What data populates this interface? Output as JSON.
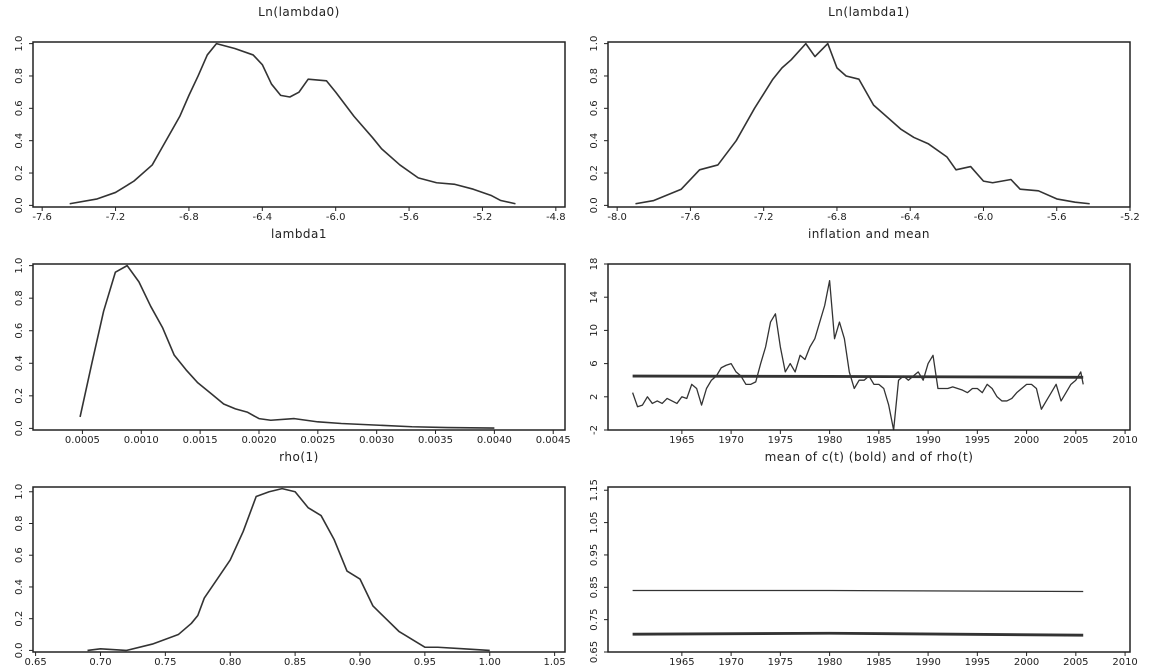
{
  "chart_data": [
    {
      "type": "line",
      "title": "Ln(lambda0)",
      "xlim": [
        -7.65,
        -4.75
      ],
      "ylim": [
        -0.01,
        1.01
      ],
      "xticks": [
        -7.6,
        -7.2,
        -6.8,
        -6.4,
        {
          "value": -6,
          "label": "-6.0"
        },
        -5.6,
        -5.2,
        -4.8
      ],
      "yticks": [
        {
          "value": 0,
          "label": "0.0"
        },
        0.2,
        0.4,
        0.6,
        0.8,
        {
          "value": 1,
          "label": "1.0"
        }
      ],
      "series": [
        {
          "color": "#333333",
          "linewidth": 1.6,
          "x": [
            -7.45,
            -7.3,
            -7.2,
            -7.1,
            -7.0,
            -6.95,
            -6.85,
            -6.8,
            -6.75,
            -6.7,
            -6.65,
            -6.55,
            -6.45,
            -6.4,
            -6.35,
            -6.3,
            -6.25,
            -6.2,
            -6.15,
            -6.05,
            -6.0,
            -5.9,
            -5.8,
            -5.75,
            -5.65,
            -5.55,
            -5.45,
            -5.35,
            -5.25,
            -5.15,
            -5.1,
            -5.02
          ],
          "values": [
            0.01,
            0.04,
            0.08,
            0.15,
            0.25,
            0.35,
            0.55,
            0.68,
            0.8,
            0.93,
            1.0,
            0.97,
            0.93,
            0.87,
            0.75,
            0.68,
            0.67,
            0.7,
            0.78,
            0.77,
            0.7,
            0.55,
            0.42,
            0.35,
            0.25,
            0.17,
            0.14,
            0.13,
            0.1,
            0.06,
            0.03,
            0.01
          ]
        }
      ]
    },
    {
      "type": "line",
      "title": "Ln(lambda1)",
      "xlim": [
        -8.05,
        -5.2
      ],
      "ylim": [
        -0.01,
        1.01
      ],
      "xticks": [
        {
          "value": -8,
          "label": "-8.0"
        },
        -7.6,
        -7.2,
        -6.8,
        -6.4,
        {
          "value": -6,
          "label": "-6.0"
        },
        -5.6,
        -5.2
      ],
      "yticks": [
        {
          "value": 0,
          "label": "0.0"
        },
        0.2,
        0.4,
        0.6,
        0.8,
        {
          "value": 1,
          "label": "1.0"
        }
      ],
      "series": [
        {
          "color": "#333333",
          "linewidth": 1.6,
          "x": [
            -7.9,
            -7.8,
            -7.65,
            -7.55,
            -7.45,
            -7.35,
            -7.25,
            -7.15,
            -7.1,
            -7.05,
            -6.97,
            -6.92,
            -6.85,
            -6.8,
            -6.75,
            -6.68,
            -6.6,
            -6.5,
            -6.45,
            -6.38,
            -6.3,
            -6.2,
            -6.15,
            -6.07,
            -6.0,
            -5.95,
            -5.85,
            -5.8,
            -5.7,
            -5.6,
            -5.5,
            -5.42
          ],
          "values": [
            0.01,
            0.03,
            0.1,
            0.22,
            0.25,
            0.4,
            0.6,
            0.78,
            0.85,
            0.9,
            1.0,
            0.92,
            1.0,
            0.85,
            0.8,
            0.78,
            0.62,
            0.52,
            0.47,
            0.42,
            0.38,
            0.3,
            0.22,
            0.24,
            0.15,
            0.14,
            0.16,
            0.1,
            0.09,
            0.04,
            0.02,
            0.01
          ]
        }
      ]
    },
    {
      "type": "line",
      "title": "lambda1",
      "xlim": [
        8e-05,
        0.0046
      ],
      "ylim": [
        -0.01,
        1.01
      ],
      "xticks": [
        0.0005,
        {
          "value": 0.001,
          "label": "0.0010"
        },
        0.0015,
        {
          "value": 0.002,
          "label": "0.0020"
        },
        0.0025,
        {
          "value": 0.003,
          "label": "0.0030"
        },
        0.0035,
        {
          "value": 0.004,
          "label": "0.0040"
        },
        0.0045
      ],
      "yticks": [
        {
          "value": 0,
          "label": "0.0"
        },
        0.2,
        0.4,
        0.6,
        0.8,
        {
          "value": 1,
          "label": "1.0"
        }
      ],
      "series": [
        {
          "color": "#333333",
          "linewidth": 1.6,
          "x": [
            0.00048,
            0.00058,
            0.00068,
            0.00078,
            0.00088,
            0.00098,
            0.00108,
            0.00118,
            0.00128,
            0.00138,
            0.00148,
            0.0016,
            0.0017,
            0.0018,
            0.0019,
            0.002,
            0.0021,
            0.0023,
            0.0025,
            0.0027,
            0.003,
            0.0033,
            0.0036,
            0.004
          ],
          "values": [
            0.07,
            0.4,
            0.72,
            0.96,
            1.0,
            0.9,
            0.75,
            0.62,
            0.45,
            0.36,
            0.28,
            0.21,
            0.15,
            0.12,
            0.1,
            0.06,
            0.05,
            0.06,
            0.04,
            0.03,
            0.02,
            0.01,
            0.005,
            0.002
          ]
        }
      ]
    },
    {
      "type": "line",
      "title": "inflation and mean",
      "xlim": [
        1957.5,
        2010.5
      ],
      "ylim": [
        -2,
        18
      ],
      "xticks": [
        1965,
        1970,
        1975,
        1980,
        1985,
        1990,
        1995,
        2000,
        2005,
        2010
      ],
      "yticks": [
        -2,
        2,
        6,
        10,
        14,
        18
      ],
      "series": [
        {
          "color": "#333333",
          "linewidth": 1.3,
          "x": [
            1960,
            1960.5,
            1961,
            1961.5,
            1962,
            1962.5,
            1963,
            1963.5,
            1964,
            1964.5,
            1965,
            1965.5,
            1966,
            1966.5,
            1967,
            1967.5,
            1968,
            1968.5,
            1969,
            1969.5,
            1970,
            1970.5,
            1971,
            1971.5,
            1972,
            1972.5,
            1973,
            1973.5,
            1974,
            1974.5,
            1975,
            1975.5,
            1976,
            1976.5,
            1977,
            1977.5,
            1978,
            1978.5,
            1979,
            1979.5,
            1980,
            1980.5,
            1981,
            1981.5,
            1982,
            1982.5,
            1983,
            1983.5,
            1984,
            1984.5,
            1985,
            1985.5,
            1986,
            1986.5,
            1987,
            1987.5,
            1988,
            1988.5,
            1989,
            1989.5,
            1990,
            1990.5,
            1991,
            1991.5,
            1992,
            1992.5,
            1993,
            1993.5,
            1994,
            1994.5,
            1995,
            1995.5,
            1996,
            1996.5,
            1997,
            1997.5,
            1998,
            1998.5,
            1999,
            1999.5,
            2000,
            2000.5,
            2001,
            2001.5,
            2002,
            2002.5,
            2003,
            2003.5,
            2004,
            2004.5,
            2005,
            2005.5,
            2005.75
          ],
          "values": [
            2.5,
            0.8,
            1,
            2,
            1.2,
            1.5,
            1.2,
            1.8,
            1.5,
            1.2,
            2,
            1.8,
            3.5,
            3,
            1,
            3,
            4,
            4.5,
            5.5,
            5.8,
            6,
            5,
            4.5,
            3.5,
            3.5,
            3.8,
            6,
            8,
            11,
            12,
            8,
            5,
            6,
            5,
            7,
            6.5,
            8,
            9,
            11,
            13,
            16,
            9,
            11,
            9,
            5,
            3,
            4,
            4,
            4.5,
            3.5,
            3.5,
            3,
            1,
            -2,
            4,
            4.5,
            4,
            4.5,
            5,
            4,
            6,
            7,
            3,
            3,
            3,
            3.2,
            3,
            2.8,
            2.5,
            3,
            3,
            2.5,
            3.5,
            3,
            2,
            1.5,
            1.5,
            1.8,
            2.5,
            3,
            3.5,
            3.5,
            3,
            0.5,
            1.5,
            2.5,
            3.5,
            1.5,
            2.5,
            3.5,
            4,
            5,
            3.5
          ]
        },
        {
          "color": "#333333",
          "linewidth": 2.8,
          "x": [
            1960,
            1980,
            2005.75
          ],
          "values": [
            4.5,
            4.45,
            4.35
          ]
        }
      ]
    },
    {
      "type": "line",
      "title": "rho(1)",
      "xlim": [
        0.648,
        1.058
      ],
      "ylim": [
        -0.01,
        1.03
      ],
      "xticks": [
        0.65,
        {
          "value": 0.7,
          "label": "0.70"
        },
        0.75,
        {
          "value": 0.8,
          "label": "0.80"
        },
        0.85,
        {
          "value": 0.9,
          "label": "0.90"
        },
        0.95,
        {
          "value": 1,
          "label": "1.00"
        },
        1.05
      ],
      "yticks": [
        {
          "value": 0,
          "label": "0.0"
        },
        0.2,
        0.4,
        0.6,
        0.8,
        {
          "value": 1,
          "label": "1.0"
        }
      ],
      "series": [
        {
          "color": "#333333",
          "linewidth": 1.6,
          "x": [
            0.69,
            0.7,
            0.72,
            0.74,
            0.76,
            0.77,
            0.775,
            0.78,
            0.79,
            0.8,
            0.81,
            0.82,
            0.83,
            0.84,
            0.85,
            0.86,
            0.87,
            0.88,
            0.89,
            0.9,
            0.91,
            0.92,
            0.93,
            0.94,
            0.95,
            0.96,
            0.98,
            1.0
          ],
          "values": [
            0.0,
            0.01,
            0.0,
            0.04,
            0.1,
            0.17,
            0.22,
            0.33,
            0.45,
            0.57,
            0.75,
            0.97,
            1.0,
            1.02,
            1.0,
            0.9,
            0.85,
            0.7,
            0.5,
            0.45,
            0.28,
            0.2,
            0.12,
            0.07,
            0.02,
            0.02,
            0.01,
            0.0
          ]
        }
      ]
    },
    {
      "type": "line",
      "title": "mean of c(t) (bold) and of rho(t)",
      "xlim": [
        1957.5,
        2010.5
      ],
      "ylim": [
        0.65,
        1.16
      ],
      "xticks": [
        1965,
        1970,
        1975,
        1980,
        1985,
        1990,
        1995,
        2000,
        2005,
        2010
      ],
      "yticks": [
        0.65,
        0.75,
        0.85,
        0.95,
        1.05,
        1.15
      ],
      "series": [
        {
          "color": "#333333",
          "linewidth": 1.2,
          "x": [
            1960,
            1980,
            2005.75
          ],
          "values": [
            0.84,
            0.84,
            0.837
          ]
        },
        {
          "color": "#333333",
          "linewidth": 2.8,
          "x": [
            1960,
            1980,
            2005.75
          ],
          "values": [
            0.705,
            0.708,
            0.702
          ]
        }
      ]
    }
  ]
}
